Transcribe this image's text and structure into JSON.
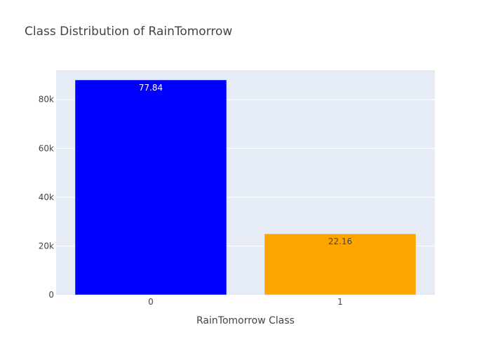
{
  "chart_data": {
    "type": "bar",
    "title": "Class Distribution of RainTomorrow",
    "xlabel": "RainTomorrow Class",
    "ylabel": "",
    "categories": [
      "0",
      "1"
    ],
    "values": [
      88000,
      25000
    ],
    "bar_labels": [
      "77.84",
      "22.16"
    ],
    "bar_colors": [
      "#0000ff",
      "#ffa500"
    ],
    "bar_label_colors": [
      "#ffffff",
      "#444444"
    ],
    "ylim": [
      0,
      92000
    ],
    "yticks": [
      0,
      20000,
      40000,
      60000,
      80000
    ],
    "ytick_labels": [
      "0",
      "20k",
      "40k",
      "60k",
      "80k"
    ],
    "grid": true,
    "legend": "none",
    "plot_background": "#e5ecf6",
    "grid_color": "#ffffff"
  }
}
